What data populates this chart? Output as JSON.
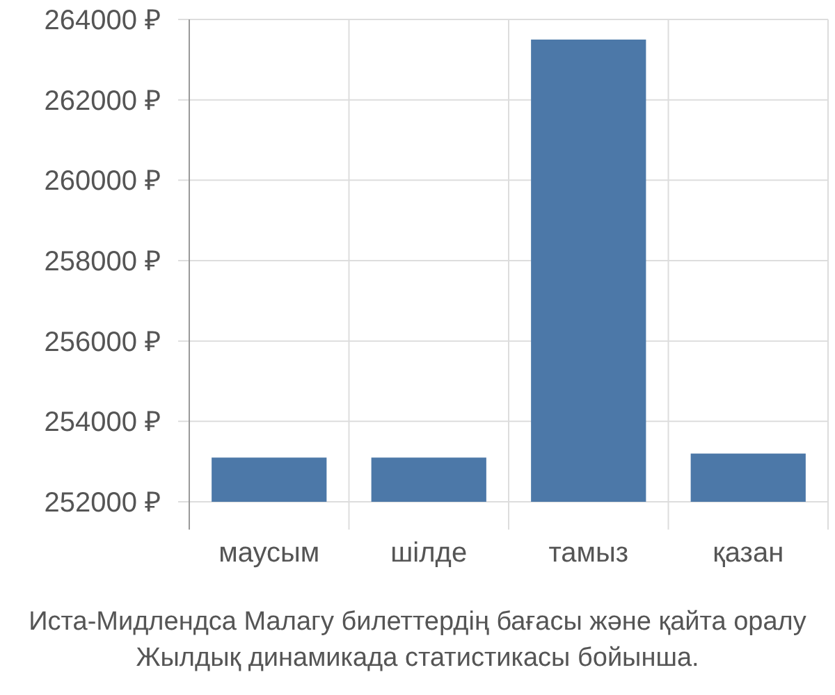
{
  "chart_data": {
    "type": "bar",
    "categories": [
      "маусым",
      "шілде",
      "тамыз",
      "қазан"
    ],
    "values": [
      253100,
      253100,
      263500,
      253200
    ],
    "color": "#4c78a8",
    "ylim": [
      252000,
      264000
    ],
    "yticks": [
      {
        "value": 252000,
        "label": "252000 ₽"
      },
      {
        "value": 254000,
        "label": "254000 ₽"
      },
      {
        "value": 256000,
        "label": "256000 ₽"
      },
      {
        "value": 258000,
        "label": "258000 ₽"
      },
      {
        "value": 260000,
        "label": "260000 ₽"
      },
      {
        "value": 262000,
        "label": "262000 ₽"
      },
      {
        "value": 264000,
        "label": "264000 ₽"
      }
    ],
    "grid": true,
    "annotations": [
      "Иста-Мидлендса Малагу билеттердің бағасы және қайта оралу",
      "Жылдық динамикада статистикасы бойынша."
    ]
  }
}
